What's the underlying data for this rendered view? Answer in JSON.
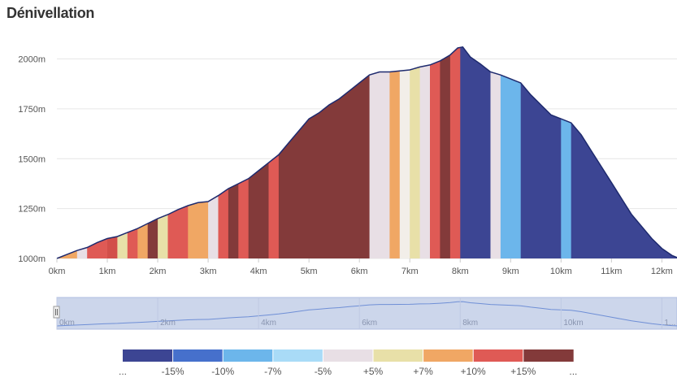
{
  "page": {
    "title": "Dénivellation"
  },
  "chart_data": {
    "type": "area",
    "title": "Dénivellation",
    "x_unit": "km",
    "y_unit": "m",
    "xlim": [
      0,
      12.3
    ],
    "ylim": [
      1000,
      2100
    ],
    "x_ticks": [
      "0km",
      "1km",
      "2km",
      "3km",
      "4km",
      "5km",
      "6km",
      "7km",
      "8km",
      "9km",
      "10km",
      "11km",
      "12km"
    ],
    "y_ticks": [
      "1000m",
      "1250m",
      "1500m",
      "1750m",
      "2000m"
    ],
    "profile": {
      "x": [
        0,
        0.2,
        0.4,
        0.6,
        0.8,
        1.0,
        1.2,
        1.4,
        1.6,
        1.8,
        2.0,
        2.2,
        2.4,
        2.6,
        2.8,
        3.0,
        3.2,
        3.4,
        3.6,
        3.8,
        4.0,
        4.2,
        4.4,
        4.6,
        4.8,
        5.0,
        5.2,
        5.4,
        5.6,
        5.8,
        6.0,
        6.2,
        6.4,
        6.6,
        6.8,
        7.0,
        7.2,
        7.4,
        7.6,
        7.8,
        7.95,
        8.05,
        8.2,
        8.4,
        8.6,
        8.8,
        9.0,
        9.2,
        9.4,
        9.6,
        9.8,
        10.0,
        10.2,
        10.4,
        10.6,
        10.8,
        11.0,
        11.2,
        11.4,
        11.6,
        11.8,
        12.0,
        12.2,
        12.3
      ],
      "y": [
        1000,
        1020,
        1040,
        1055,
        1080,
        1100,
        1110,
        1130,
        1150,
        1175,
        1200,
        1220,
        1245,
        1265,
        1280,
        1285,
        1315,
        1350,
        1375,
        1400,
        1440,
        1480,
        1520,
        1580,
        1640,
        1700,
        1730,
        1770,
        1800,
        1840,
        1880,
        1920,
        1935,
        1935,
        1940,
        1945,
        1960,
        1970,
        1990,
        2020,
        2055,
        2060,
        2010,
        1975,
        1935,
        1920,
        1900,
        1880,
        1820,
        1770,
        1720,
        1700,
        1680,
        1620,
        1540,
        1460,
        1380,
        1300,
        1220,
        1160,
        1100,
        1050,
        1015,
        1005
      ]
    },
    "grade_segments": [
      {
        "from": 0.0,
        "to": 0.4,
        "grade": "+10%",
        "color": "#f0a764"
      },
      {
        "from": 0.4,
        "to": 0.6,
        "grade": "+5%",
        "color": "#e8dfe5"
      },
      {
        "from": 0.6,
        "to": 1.0,
        "grade": "+10%",
        "color": "#df5a55"
      },
      {
        "from": 1.0,
        "to": 1.2,
        "grade": "+15%",
        "color": "#d24f4a"
      },
      {
        "from": 1.2,
        "to": 1.4,
        "grade": "+7%",
        "color": "#e8e0a8"
      },
      {
        "from": 1.4,
        "to": 1.6,
        "grade": "+10%",
        "color": "#df5a55"
      },
      {
        "from": 1.6,
        "to": 1.8,
        "grade": "+10%",
        "color": "#f0a764"
      },
      {
        "from": 1.8,
        "to": 2.0,
        "grade": "...",
        "color": "#833a3a"
      },
      {
        "from": 2.0,
        "to": 2.2,
        "grade": "+7%",
        "color": "#e8e0a8"
      },
      {
        "from": 2.2,
        "to": 2.6,
        "grade": "+15%",
        "color": "#df5a55"
      },
      {
        "from": 2.6,
        "to": 3.0,
        "grade": "+10%",
        "color": "#f0a764"
      },
      {
        "from": 3.0,
        "to": 3.2,
        "grade": "+5%",
        "color": "#e8dfe5"
      },
      {
        "from": 3.2,
        "to": 3.4,
        "grade": "+15%",
        "color": "#df5a55"
      },
      {
        "from": 3.4,
        "to": 3.6,
        "grade": "...",
        "color": "#833a3a"
      },
      {
        "from": 3.6,
        "to": 3.8,
        "grade": "+15%",
        "color": "#df5a55"
      },
      {
        "from": 3.8,
        "to": 4.2,
        "grade": "...",
        "color": "#833a3a"
      },
      {
        "from": 4.2,
        "to": 4.4,
        "grade": "+15%",
        "color": "#df5a55"
      },
      {
        "from": 4.4,
        "to": 6.2,
        "grade": "...",
        "color": "#833a3a"
      },
      {
        "from": 6.2,
        "to": 6.6,
        "grade": "+5%",
        "color": "#e8dfe5"
      },
      {
        "from": 6.6,
        "to": 6.8,
        "grade": "+10%",
        "color": "#f0a764"
      },
      {
        "from": 6.8,
        "to": 7.0,
        "grade": "+5%",
        "color": "#f2eee9"
      },
      {
        "from": 7.0,
        "to": 7.2,
        "grade": "+7%",
        "color": "#e8e0a8"
      },
      {
        "from": 7.2,
        "to": 7.4,
        "grade": "+5%",
        "color": "#e8dfe5"
      },
      {
        "from": 7.4,
        "to": 7.6,
        "grade": "+15%",
        "color": "#df5a55"
      },
      {
        "from": 7.6,
        "to": 7.8,
        "grade": "...",
        "color": "#833a3a"
      },
      {
        "from": 7.8,
        "to": 8.0,
        "grade": "+15%",
        "color": "#df5a55"
      },
      {
        "from": 8.0,
        "to": 8.6,
        "grade": "-15%",
        "color": "#3c4593"
      },
      {
        "from": 8.6,
        "to": 8.8,
        "grade": "-5%",
        "color": "#e8dfe5"
      },
      {
        "from": 8.8,
        "to": 9.2,
        "grade": "-7%",
        "color": "#6cb6eb"
      },
      {
        "from": 9.2,
        "to": 10.0,
        "grade": "...",
        "color": "#3c4593"
      },
      {
        "from": 10.0,
        "to": 10.2,
        "grade": "-7%",
        "color": "#6cb6eb"
      },
      {
        "from": 10.2,
        "to": 12.3,
        "grade": "...",
        "color": "#3c4593"
      }
    ],
    "navigator": {
      "labels": [
        "0km",
        "2km",
        "4km",
        "6km",
        "8km",
        "10km",
        "1..."
      ],
      "positions_km": [
        0,
        2,
        4,
        6,
        8,
        10,
        12
      ]
    },
    "legend": [
      {
        "label": "...",
        "color": "#3c4593"
      },
      {
        "label": "-15%",
        "color": "#4670cc"
      },
      {
        "label": "-10%",
        "color": "#6cb6eb"
      },
      {
        "label": "-7%",
        "color": "#a9dbf7"
      },
      {
        "label": "-5%",
        "color": "#e8dfe5"
      },
      {
        "label": "+5%",
        "color": "#e8e0a8"
      },
      {
        "label": "+7%",
        "color": "#f0a764"
      },
      {
        "label": "+10%",
        "color": "#df5a55"
      },
      {
        "label": "+15%",
        "color": "#833a3a"
      },
      {
        "label": "...",
        "color": null
      }
    ],
    "line_color": "#1e2a6e",
    "grid": true
  }
}
